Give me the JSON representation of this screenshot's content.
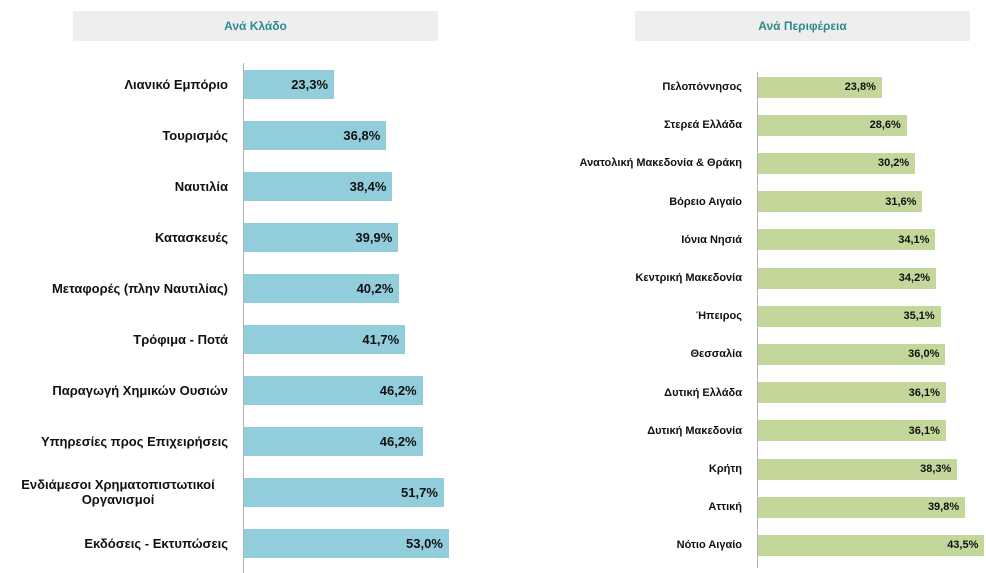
{
  "chart_data": [
    {
      "type": "bar",
      "orientation": "horizontal",
      "title": "Ανά Κλάδο",
      "color": "#92cddc",
      "categories": [
        "Λιανικό Εμπόριο",
        "Τουρισμός",
        "Ναυτιλία",
        "Κατασκευές",
        "Μεταφορές (πλην Ναυτιλίας)",
        "Τρόφιμα - Ποτά",
        "Παραγωγή Χημικών Ουσιών",
        "Υπηρεσίες προς Επιχειρήσεις",
        "Ενδιάμεσοι Χρηματοπιστωτικοί Οργανισμοί",
        "Εκδόσεις - Εκτυπώσεις"
      ],
      "values": [
        23.3,
        36.8,
        38.4,
        39.9,
        40.2,
        41.7,
        46.2,
        46.2,
        51.7,
        53.0
      ],
      "value_labels": [
        "23,3%",
        "36,8%",
        "38,4%",
        "39,9%",
        "40,2%",
        "41,7%",
        "46,2%",
        "46,2%",
        "51,7%",
        "53,0%"
      ],
      "xlim": [
        0,
        60
      ]
    },
    {
      "type": "bar",
      "orientation": "horizontal",
      "title": "Ανά Περιφέρεια",
      "color": "#c4d79b",
      "categories": [
        "Πελοπόννησος",
        "Στερεά Ελλάδα",
        "Ανατολική Μακεδονία & Θράκη",
        "Βόρειο Αιγαίο",
        "Ιόνια Νησιά",
        "Κεντρική Μακεδονία",
        "Ήπειρος",
        "Θεσσαλία",
        "Δυτική Ελλάδα",
        "Δυτική Μακεδονία",
        "Κρήτη",
        "Αττική",
        "Νότιο Αιγαίο"
      ],
      "values": [
        23.8,
        28.6,
        30.2,
        31.6,
        34.1,
        34.2,
        35.1,
        36.0,
        36.1,
        36.1,
        38.3,
        39.8,
        43.5
      ],
      "value_labels": [
        "23,8%",
        "28,6%",
        "30,2%",
        "31,6%",
        "34,1%",
        "34,2%",
        "35,1%",
        "36,0%",
        "36,1%",
        "36,1%",
        "38,3%",
        "39,8%",
        "43,5%"
      ],
      "xlim": [
        0,
        44
      ]
    }
  ]
}
